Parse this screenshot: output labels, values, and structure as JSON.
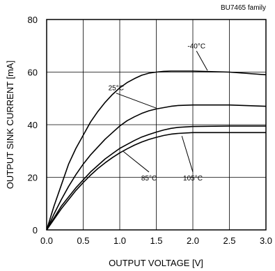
{
  "chart_data": {
    "type": "line",
    "title": "",
    "family_label": "BU7465 family",
    "xlabel": "OUTPUT VOLTAGE [V]",
    "ylabel": "OUTPUT SINK CURRENT [mA]",
    "xlim": [
      0.0,
      3.0
    ],
    "ylim": [
      0,
      80
    ],
    "xticks": [
      "0.0",
      "0.5",
      "1.0",
      "1.5",
      "2.0",
      "2.5",
      "3.0"
    ],
    "yticks": [
      "0",
      "20",
      "40",
      "60",
      "80"
    ],
    "grid": true,
    "series": [
      {
        "name": "-40°C",
        "x": [
          0.0,
          0.1,
          0.2,
          0.3,
          0.4,
          0.5,
          0.6,
          0.7,
          0.8,
          0.9,
          1.0,
          1.1,
          1.2,
          1.3,
          1.4,
          1.5,
          1.6,
          1.7,
          2.0,
          2.5,
          3.0
        ],
        "y": [
          0,
          9,
          17,
          25,
          31,
          36,
          41,
          45,
          48.5,
          51.5,
          54,
          56,
          57.5,
          58.8,
          59.6,
          60,
          60.3,
          60.4,
          60.4,
          60,
          59
        ]
      },
      {
        "name": "25°C",
        "x": [
          0.0,
          0.1,
          0.2,
          0.3,
          0.4,
          0.5,
          0.6,
          0.7,
          0.8,
          0.9,
          1.0,
          1.1,
          1.2,
          1.3,
          1.4,
          1.5,
          1.6,
          1.7,
          1.8,
          2.0,
          2.5,
          3.0
        ],
        "y": [
          0,
          6,
          11.5,
          16.5,
          21,
          25,
          28.5,
          31.5,
          34.5,
          37,
          39.5,
          41.5,
          43,
          44.3,
          45.3,
          46,
          46.5,
          47,
          47.3,
          47.5,
          47.5,
          47
        ]
      },
      {
        "name": "85°C",
        "x": [
          0.0,
          0.1,
          0.2,
          0.3,
          0.4,
          0.5,
          0.6,
          0.7,
          0.8,
          0.9,
          1.0,
          1.1,
          1.2,
          1.3,
          1.4,
          1.5,
          1.6,
          1.7,
          1.8,
          2.0,
          2.5,
          3.0
        ],
        "y": [
          0,
          4.5,
          9,
          12.5,
          16,
          19,
          22,
          24.5,
          27,
          29,
          31,
          32.5,
          34,
          35.3,
          36.3,
          37.2,
          38,
          38.6,
          39,
          39.3,
          39.5,
          39.5
        ]
      },
      {
        "name": "105°C",
        "x": [
          0.0,
          0.1,
          0.2,
          0.3,
          0.4,
          0.5,
          0.6,
          0.7,
          0.8,
          0.9,
          1.0,
          1.1,
          1.2,
          1.3,
          1.4,
          1.5,
          1.6,
          1.7,
          1.8,
          2.0,
          2.5,
          3.0
        ],
        "y": [
          0,
          4,
          8,
          11.5,
          15,
          18,
          20.8,
          23.3,
          25.5,
          27.5,
          29.3,
          30.8,
          32.2,
          33.4,
          34.4,
          35.2,
          35.9,
          36.4,
          36.7,
          37,
          37,
          37
        ]
      }
    ],
    "annotations": [
      {
        "text": "-40°C",
        "series": "-40°C",
        "from": [
          2.05,
          68
        ],
        "to": [
          2.2,
          60.6
        ]
      },
      {
        "text": "25°C",
        "series": "25°C",
        "from": [
          0.95,
          52
        ],
        "to": [
          1.5,
          46.3
        ]
      },
      {
        "text": "85°C",
        "series": "85°C",
        "from": [
          1.4,
          22
        ],
        "to": [
          1.05,
          29.8
        ]
      },
      {
        "text": "105°C",
        "series": "105°C",
        "from": [
          2.0,
          22
        ],
        "to": [
          1.85,
          35.7
        ]
      }
    ]
  }
}
